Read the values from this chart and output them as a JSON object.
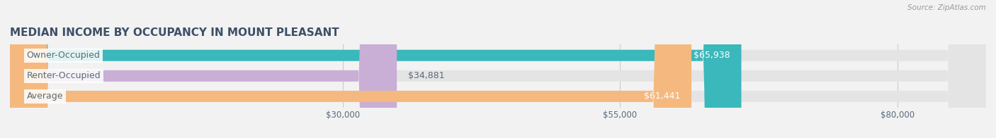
{
  "title": "MEDIAN INCOME BY OCCUPANCY IN MOUNT PLEASANT",
  "source": "Source: ZipAtlas.com",
  "categories": [
    "Owner-Occupied",
    "Renter-Occupied",
    "Average"
  ],
  "values": [
    65938,
    34881,
    61441
  ],
  "bar_colors": [
    "#3ab8bc",
    "#c9aed6",
    "#f5b97f"
  ],
  "label_colors": [
    "#ffffff",
    "#5a6a7a",
    "#ffffff"
  ],
  "value_labels": [
    "$65,938",
    "$34,881",
    "$61,441"
  ],
  "x_ticks": [
    30000,
    55000,
    80000
  ],
  "x_tick_labels": [
    "$30,000",
    "$55,000",
    "$80,000"
  ],
  "x_min": 0,
  "x_max": 88000,
  "bar_height": 0.55,
  "background_color": "#f2f2f2",
  "bar_bg_color": "#e4e4e4",
  "title_color": "#3d5068",
  "label_text_color": "#5a6a7a",
  "source_color": "#999999",
  "title_fontsize": 11,
  "axis_label_fontsize": 8.5,
  "bar_label_fontsize": 9
}
